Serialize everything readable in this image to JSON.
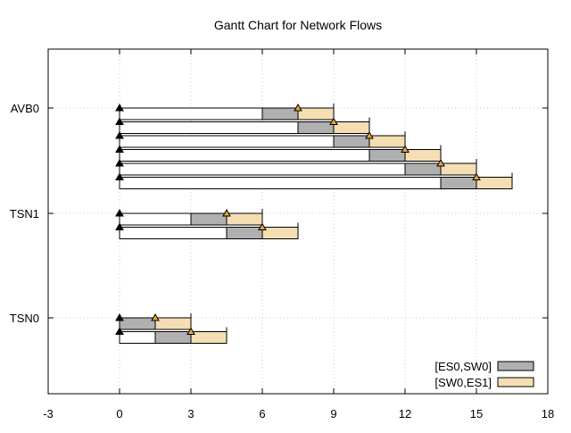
{
  "chart_data": {
    "type": "gantt",
    "title": "Gantt Chart for Network Flows",
    "xlabel": "",
    "ylabel": "",
    "xlim": [
      -3,
      18
    ],
    "xticks": [
      -3,
      0,
      3,
      6,
      9,
      12,
      15,
      18
    ],
    "grid": true,
    "legend_position": "bottom-right",
    "categories": [
      "AVB0",
      "TSN1",
      "TSN0"
    ],
    "series": [
      {
        "name": "[ES0,SW0]",
        "color": "#b0b0b0"
      },
      {
        "name": "[SW0,ES1]",
        "color": "#f5deb3"
      }
    ],
    "marker_color": "#e8a33a",
    "flows": [
      {
        "category": "AVB0",
        "release": 0,
        "links": [
          [
            6,
            7.5
          ],
          [
            7.5,
            9
          ]
        ],
        "deadline": 9
      },
      {
        "category": "AVB0",
        "release": 0,
        "links": [
          [
            7.5,
            9
          ],
          [
            9,
            10.5
          ]
        ],
        "deadline": 10.5
      },
      {
        "category": "AVB0",
        "release": 0,
        "links": [
          [
            9,
            10.5
          ],
          [
            10.5,
            12
          ]
        ],
        "deadline": 12
      },
      {
        "category": "AVB0",
        "release": 0,
        "links": [
          [
            10.5,
            12
          ],
          [
            12,
            13.5
          ]
        ],
        "deadline": 13.5
      },
      {
        "category": "AVB0",
        "release": 0,
        "links": [
          [
            12,
            13.5
          ],
          [
            13.5,
            15
          ]
        ],
        "deadline": 15
      },
      {
        "category": "AVB0",
        "release": 0,
        "links": [
          [
            13.5,
            15
          ],
          [
            15,
            16.5
          ]
        ],
        "deadline": 16.5
      },
      {
        "category": "TSN1",
        "release": 0,
        "links": [
          [
            3,
            4.5
          ],
          [
            4.5,
            6
          ]
        ],
        "deadline": 6
      },
      {
        "category": "TSN1",
        "release": 0,
        "links": [
          [
            4.5,
            6
          ],
          [
            6,
            7.5
          ]
        ],
        "deadline": 7.5
      },
      {
        "category": "TSN0",
        "release": 0,
        "links": [
          [
            0,
            1.5
          ],
          [
            1.5,
            3
          ]
        ],
        "deadline": 3
      },
      {
        "category": "TSN0",
        "release": 0,
        "links": [
          [
            1.5,
            3
          ],
          [
            3,
            4.5
          ]
        ],
        "deadline": 4.5
      }
    ]
  }
}
